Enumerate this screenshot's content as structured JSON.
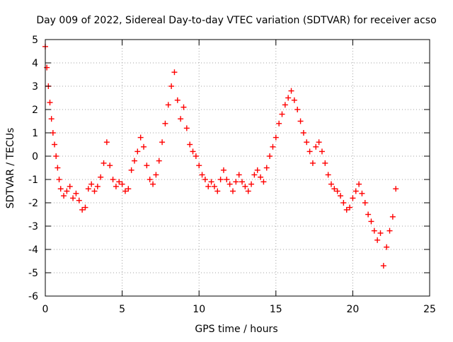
{
  "chart_data": {
    "type": "scatter",
    "title": "Day 009 of 2022, Sidereal Day-to-day VTEC variation (SDTVAR) for receiver acso",
    "xlabel": "GPS time / hours",
    "ylabel": "SDTVAR / TECUs",
    "xlim": [
      0,
      25
    ],
    "ylim": [
      -6,
      5
    ],
    "xticks": [
      0,
      5,
      10,
      15,
      20,
      25
    ],
    "yticks": [
      -6,
      -5,
      -4,
      -3,
      -2,
      -1,
      0,
      1,
      2,
      3,
      4,
      5
    ],
    "grid": true,
    "marker": "+",
    "color": "#ff0000",
    "series": [
      {
        "name": "SDTVAR",
        "x": [
          0.0,
          0.1,
          0.2,
          0.3,
          0.4,
          0.5,
          0.6,
          0.7,
          0.8,
          0.9,
          1.0,
          1.2,
          1.4,
          1.6,
          1.8,
          2.0,
          2.2,
          2.4,
          2.6,
          2.8,
          3.0,
          3.2,
          3.4,
          3.6,
          3.8,
          4.0,
          4.2,
          4.4,
          4.6,
          4.8,
          5.0,
          5.2,
          5.4,
          5.6,
          5.8,
          6.0,
          6.2,
          6.4,
          6.6,
          6.8,
          7.0,
          7.2,
          7.4,
          7.6,
          7.8,
          8.0,
          8.2,
          8.4,
          8.6,
          8.8,
          9.0,
          9.2,
          9.4,
          9.6,
          9.8,
          10.0,
          10.2,
          10.4,
          10.6,
          10.8,
          11.0,
          11.2,
          11.4,
          11.6,
          11.8,
          12.0,
          12.2,
          12.4,
          12.6,
          12.8,
          13.0,
          13.2,
          13.4,
          13.6,
          13.8,
          14.0,
          14.2,
          14.4,
          14.6,
          14.8,
          15.0,
          15.2,
          15.4,
          15.6,
          15.8,
          16.0,
          16.2,
          16.4,
          16.6,
          16.8,
          17.0,
          17.2,
          17.4,
          17.6,
          17.8,
          18.0,
          18.2,
          18.4,
          18.6,
          18.8,
          19.0,
          19.2,
          19.4,
          19.6,
          19.8,
          20.0,
          20.2,
          20.4,
          20.6,
          20.8,
          21.0,
          21.2,
          21.4,
          21.6,
          21.8,
          22.0,
          22.2,
          22.4,
          22.6,
          22.8
        ],
        "y": [
          4.7,
          3.8,
          3.0,
          2.3,
          1.6,
          1.0,
          0.5,
          0.0,
          -0.5,
          -1.0,
          -1.4,
          -1.7,
          -1.5,
          -1.3,
          -1.8,
          -1.6,
          -1.9,
          -2.3,
          -2.2,
          -1.4,
          -1.2,
          -1.5,
          -1.3,
          -0.9,
          -0.3,
          0.6,
          -0.4,
          -1.0,
          -1.3,
          -1.1,
          -1.2,
          -1.5,
          -1.4,
          -0.6,
          -0.2,
          0.2,
          0.8,
          0.4,
          -0.4,
          -1.0,
          -1.2,
          -0.8,
          -0.2,
          0.6,
          1.4,
          2.2,
          3.0,
          3.6,
          2.4,
          1.6,
          2.1,
          1.2,
          0.5,
          0.2,
          0.0,
          -0.4,
          -0.8,
          -1.0,
          -1.3,
          -1.1,
          -1.3,
          -1.5,
          -1.0,
          -0.6,
          -1.0,
          -1.2,
          -1.5,
          -1.1,
          -0.8,
          -1.1,
          -1.3,
          -1.5,
          -1.2,
          -0.8,
          -0.6,
          -0.9,
          -1.1,
          -0.5,
          0.0,
          0.4,
          0.8,
          1.4,
          1.8,
          2.2,
          2.5,
          2.8,
          2.4,
          2.0,
          1.5,
          1.0,
          0.6,
          0.2,
          -0.3,
          0.4,
          0.6,
          0.2,
          -0.3,
          -0.8,
          -1.2,
          -1.4,
          -1.5,
          -1.7,
          -2.0,
          -2.3,
          -2.2,
          -1.8,
          -1.5,
          -1.2,
          -1.6,
          -2.0,
          -2.5,
          -2.8,
          -3.2,
          -3.6,
          -3.3,
          -4.7,
          -3.9,
          -3.2,
          -2.6,
          -1.4
        ]
      }
    ]
  }
}
